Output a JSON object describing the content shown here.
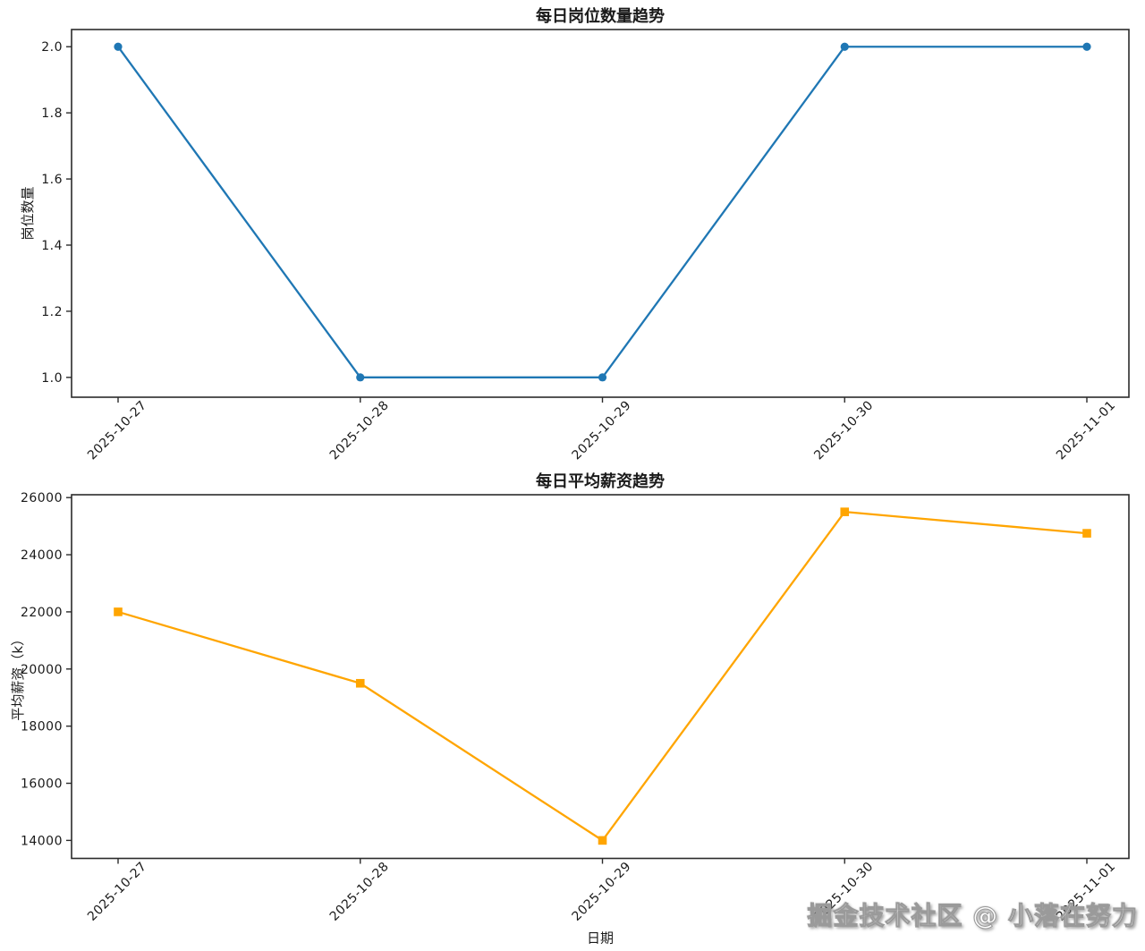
{
  "figure": {
    "background": "#ffffff",
    "text_color": "#1a1a1a",
    "spine_color": "#2b2b2b"
  },
  "watermark": {
    "text": "掘金技术社区 @ 小落在努力"
  },
  "chart_data": [
    {
      "type": "line",
      "title": "每日岗位数量趋势",
      "xlabel": "",
      "ylabel": "岗位数量",
      "categories": [
        "2025-10-27",
        "2025-10-28",
        "2025-10-29",
        "2025-10-30",
        "2025-11-01"
      ],
      "values": [
        2.0,
        1.0,
        1.0,
        2.0,
        2.0
      ],
      "yticks": [
        1.0,
        1.2,
        1.4,
        1.6,
        1.8,
        2.0
      ],
      "ytick_labels": [
        "1.0",
        "1.2",
        "1.4",
        "1.6",
        "1.8",
        "2.0"
      ],
      "ylim": [
        0.94,
        2.052
      ],
      "line_color": "#1f77b4",
      "marker": "circle",
      "grid": false,
      "legend": null
    },
    {
      "type": "line",
      "title": "每日平均薪资趋势",
      "xlabel": "日期",
      "ylabel": "平均薪资（k）",
      "categories": [
        "2025-10-27",
        "2025-10-28",
        "2025-10-29",
        "2025-10-30",
        "2025-11-01"
      ],
      "values": [
        22000,
        19500,
        14000,
        25500,
        24750
      ],
      "yticks": [
        14000,
        16000,
        18000,
        20000,
        22000,
        24000,
        26000
      ],
      "ytick_labels": [
        "14000",
        "16000",
        "18000",
        "20000",
        "22000",
        "24000",
        "26000"
      ],
      "ylim": [
        13370,
        26100
      ],
      "line_color": "#FFA500",
      "marker": "square",
      "grid": false,
      "legend": null
    }
  ]
}
